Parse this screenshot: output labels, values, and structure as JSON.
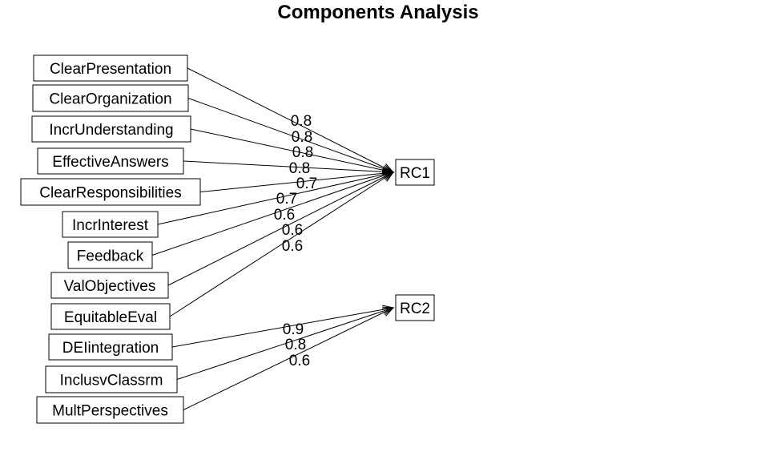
{
  "title": "Components Analysis",
  "components": [
    {
      "id": "RC1",
      "label": "RC1"
    },
    {
      "id": "RC2",
      "label": "RC2"
    }
  ],
  "variables": [
    {
      "label": "ClearPresentation"
    },
    {
      "label": "ClearOrganization"
    },
    {
      "label": "IncrUnderstanding"
    },
    {
      "label": "EffectiveAnswers"
    },
    {
      "label": "ClearResponsibilities"
    },
    {
      "label": "IncrInterest"
    },
    {
      "label": "Feedback"
    },
    {
      "label": "ValObjectives"
    },
    {
      "label": "EquitableEval"
    },
    {
      "label": "DEIintegration"
    },
    {
      "label": "InclusvClassrm"
    },
    {
      "label": "MultPerspectives"
    }
  ],
  "loadings": [
    {
      "from": "ClearPresentation",
      "to": "RC1",
      "value": "0.8"
    },
    {
      "from": "ClearOrganization",
      "to": "RC1",
      "value": "0.8"
    },
    {
      "from": "IncrUnderstanding",
      "to": "RC1",
      "value": "0.8"
    },
    {
      "from": "EffectiveAnswers",
      "to": "RC1",
      "value": "0.8"
    },
    {
      "from": "ClearResponsibilities",
      "to": "RC1",
      "value": "0.7"
    },
    {
      "from": "IncrInterest",
      "to": "RC1",
      "value": "0.7"
    },
    {
      "from": "Feedback",
      "to": "RC1",
      "value": "0.6"
    },
    {
      "from": "ValObjectives",
      "to": "RC1",
      "value": "0.6"
    },
    {
      "from": "EquitableEval",
      "to": "RC1",
      "value": "0.6"
    },
    {
      "from": "DEIintegration",
      "to": "RC2",
      "value": "0.9"
    },
    {
      "from": "InclusvClassrm",
      "to": "RC2",
      "value": "0.8"
    },
    {
      "from": "MultPerspectives",
      "to": "RC2",
      "value": "0.6"
    }
  ]
}
